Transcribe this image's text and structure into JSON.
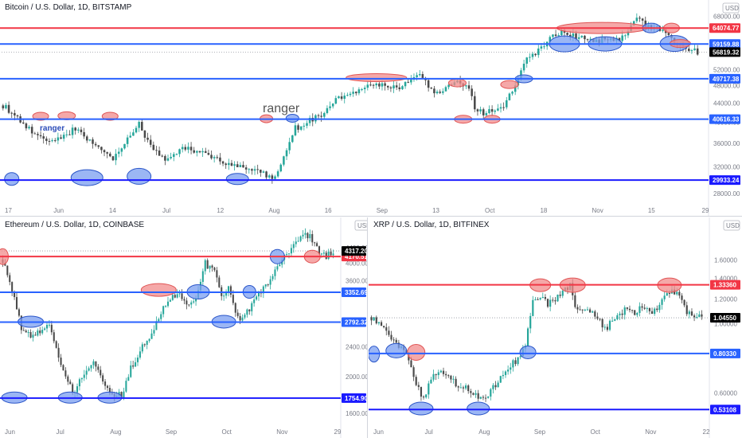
{
  "colors": {
    "up": "#26a69a",
    "down": "#4a4a4a",
    "resistance": "#f23645",
    "support": "#2962ff",
    "support_dark": "#1a1aff",
    "red_ellipse": "#f28b8b",
    "blue_ellipse": "#7a9ef0",
    "axis_text": "#787b86",
    "current_label": "#000000"
  },
  "chart_data": [
    {
      "id": "btc",
      "type": "candlestick",
      "title": "Bitcoin / U.S. Dollar, 1D, BITSTAMP",
      "currency": "USD",
      "scale": "log",
      "ylim": [
        27000,
        72000
      ],
      "y_ticks": [
        68000,
        52000,
        48000,
        44000,
        40000,
        36000,
        32000,
        28000
      ],
      "y_tick_labels": [
        "68000.00",
        "52000.00",
        "48000.00",
        "44000.00",
        "40000.00",
        "36000.00",
        "32000.00",
        "28000.00"
      ],
      "x_ticks": [
        "17",
        "Jun",
        "14",
        "Jul",
        "12",
        "Aug",
        "16",
        "Sep",
        "13",
        "Oct",
        "18",
        "Nov",
        "15",
        "29"
      ],
      "levels": [
        {
          "value": 64074.77,
          "label": "64074.77",
          "kind": "resistance"
        },
        {
          "value": 59159.88,
          "label": "59159.88",
          "kind": "support"
        },
        {
          "value": 49717.38,
          "label": "49717.38",
          "kind": "support"
        },
        {
          "value": 40616.33,
          "label": "40616.33",
          "kind": "support"
        },
        {
          "value": 29933.24,
          "label": "29933.24",
          "kind": "support_dark"
        }
      ],
      "current": {
        "value": 56819.32,
        "label": "56819.32"
      },
      "annotations": [
        {
          "text": "ranger",
          "size": "large",
          "style": "gray"
        },
        {
          "text": "ranger",
          "size": "small",
          "style": "blue"
        }
      ],
      "close_path": [
        [
          0,
          43500
        ],
        [
          5,
          41000
        ],
        [
          10,
          38000
        ],
        [
          15,
          36200
        ],
        [
          20,
          37000
        ],
        [
          25,
          38800
        ],
        [
          30,
          36400
        ],
        [
          35,
          34500
        ],
        [
          38,
          33500
        ],
        [
          42,
          36000
        ],
        [
          47,
          39500
        ],
        [
          50,
          36500
        ],
        [
          53,
          34200
        ],
        [
          57,
          33000
        ],
        [
          62,
          35200
        ],
        [
          67,
          34600
        ],
        [
          72,
          33800
        ],
        [
          77,
          32500
        ],
        [
          82,
          31900
        ],
        [
          87,
          31500
        ],
        [
          91,
          30600
        ],
        [
          94,
          30300
        ],
        [
          96,
          32200
        ],
        [
          99,
          36500
        ],
        [
          101,
          39200
        ],
        [
          103,
          38700
        ],
        [
          106,
          40400
        ],
        [
          110,
          41200
        ],
        [
          114,
          44300
        ],
        [
          118,
          45900
        ],
        [
          123,
          47200
        ],
        [
          128,
          48500
        ],
        [
          132,
          48000
        ],
        [
          136,
          47400
        ],
        [
          140,
          48900
        ],
        [
          145,
          50600
        ],
        [
          147,
          47000
        ],
        [
          150,
          46200
        ],
        [
          153,
          47500
        ],
        [
          157,
          48600
        ],
        [
          161,
          47800
        ],
        [
          163,
          43200
        ],
        [
          166,
          41700
        ],
        [
          169,
          42600
        ],
        [
          173,
          43400
        ],
        [
          177,
          48100
        ],
        [
          181,
          54800
        ],
        [
          185,
          57300
        ],
        [
          190,
          61500
        ],
        [
          193,
          62400
        ],
        [
          197,
          61800
        ],
        [
          201,
          60500
        ],
        [
          205,
          59800
        ],
        [
          209,
          61200
        ],
        [
          213,
          60800
        ],
        [
          216,
          63100
        ],
        [
          219,
          67200
        ],
        [
          222,
          65000
        ],
        [
          225,
          64400
        ],
        [
          228,
          63800
        ],
        [
          231,
          60500
        ],
        [
          234,
          58200
        ],
        [
          237,
          57600
        ],
        [
          240,
          56800
        ]
      ]
    },
    {
      "id": "eth",
      "type": "candlestick",
      "title": "Ethereum / U.S. Dollar, 1D, COINBASE",
      "currency": "USD",
      "scale": "log",
      "ylim": [
        1530,
        4950
      ],
      "y_ticks": [
        4400,
        4000,
        3600,
        2400,
        2000,
        1600
      ],
      "y_tick_labels": [
        "4400.00",
        "4000.00",
        "3600.00",
        "2400.00",
        "2000.00",
        "1600.00"
      ],
      "x_ticks": [
        "Jun",
        "Jul",
        "Aug",
        "Sep",
        "Oct",
        "Nov",
        "29"
      ],
      "levels": [
        {
          "value": 4170.51,
          "label": "4170.51",
          "kind": "resistance"
        },
        {
          "value": 3352.69,
          "label": "3352.69",
          "kind": "support"
        },
        {
          "value": 2792.32,
          "label": "2792.32",
          "kind": "support"
        },
        {
          "value": 1754.9,
          "label": "1754.90",
          "kind": "support_dark"
        }
      ],
      "current": {
        "value": 4317.2,
        "label": "4317.20"
      },
      "close_path": [
        [
          0,
          4100
        ],
        [
          4,
          3400
        ],
        [
          8,
          2700
        ],
        [
          12,
          2550
        ],
        [
          16,
          2650
        ],
        [
          20,
          2700
        ],
        [
          24,
          2250
        ],
        [
          28,
          1900
        ],
        [
          31,
          1810
        ],
        [
          35,
          2050
        ],
        [
          39,
          2150
        ],
        [
          43,
          1950
        ],
        [
          47,
          1760
        ],
        [
          51,
          1790
        ],
        [
          55,
          2100
        ],
        [
          59,
          2350
        ],
        [
          63,
          2500
        ],
        [
          67,
          2900
        ],
        [
          71,
          3200
        ],
        [
          75,
          3300
        ],
        [
          79,
          3150
        ],
        [
          83,
          3250
        ],
        [
          87,
          4000
        ],
        [
          91,
          3800
        ],
        [
          94,
          3300
        ],
        [
          97,
          3450
        ],
        [
          100,
          3000
        ],
        [
          103,
          2820
        ],
        [
          106,
          3050
        ],
        [
          110,
          3350
        ],
        [
          114,
          3550
        ],
        [
          118,
          3900
        ],
        [
          122,
          4300
        ],
        [
          126,
          4500
        ],
        [
          130,
          4750
        ],
        [
          133,
          4650
        ],
        [
          136,
          4300
        ],
        [
          139,
          4170
        ],
        [
          142,
          4300
        ]
      ]
    },
    {
      "id": "xrp",
      "type": "candlestick",
      "title": "XRP / U.S. Dollar, 1D, BITFINEX",
      "currency": "USD",
      "scale": "log",
      "ylim": [
        0.49,
        2.02
      ],
      "y_ticks": [
        1.6,
        1.4,
        1.2,
        1.0,
        0.6
      ],
      "y_tick_labels": [
        "1.60000",
        "1.40000",
        "1.20000",
        "1.00000",
        "0.60000"
      ],
      "x_ticks": [
        "Jun",
        "Jul",
        "Aug",
        "Sep",
        "Oct",
        "Nov",
        "22"
      ],
      "levels": [
        {
          "value": 1.3336,
          "label": "1.33360",
          "kind": "resistance"
        },
        {
          "value": 0.8033,
          "label": "0.80330",
          "kind": "support"
        },
        {
          "value": 0.53108,
          "label": "0.53108",
          "kind": "support_dark"
        }
      ],
      "current": {
        "value": 1.0455,
        "label": "1.04550"
      },
      "close_path": [
        [
          0,
          1.05
        ],
        [
          4,
          0.98
        ],
        [
          8,
          0.9
        ],
        [
          12,
          0.84
        ],
        [
          15,
          0.78
        ],
        [
          18,
          0.64
        ],
        [
          21,
          0.58
        ],
        [
          24,
          0.67
        ],
        [
          28,
          0.7
        ],
        [
          32,
          0.66
        ],
        [
          36,
          0.63
        ],
        [
          40,
          0.61
        ],
        [
          44,
          0.58
        ],
        [
          47,
          0.59
        ],
        [
          50,
          0.64
        ],
        [
          53,
          0.7
        ],
        [
          56,
          0.74
        ],
        [
          59,
          0.77
        ],
        [
          62,
          0.85
        ],
        [
          65,
          1.2
        ],
        [
          68,
          1.22
        ],
        [
          71,
          1.15
        ],
        [
          74,
          1.21
        ],
        [
          77,
          1.26
        ],
        [
          80,
          1.32
        ],
        [
          82,
          1.15
        ],
        [
          85,
          1.08
        ],
        [
          88,
          1.1
        ],
        [
          91,
          1.05
        ],
        [
          94,
          0.96
        ],
        [
          97,
          1.02
        ],
        [
          100,
          1.08
        ],
        [
          103,
          1.12
        ],
        [
          106,
          1.09
        ],
        [
          109,
          1.14
        ],
        [
          112,
          1.08
        ],
        [
          115,
          1.12
        ],
        [
          118,
          1.22
        ],
        [
          121,
          1.3
        ],
        [
          124,
          1.22
        ],
        [
          127,
          1.1
        ],
        [
          130,
          1.06
        ],
        [
          133,
          1.05
        ]
      ]
    }
  ]
}
